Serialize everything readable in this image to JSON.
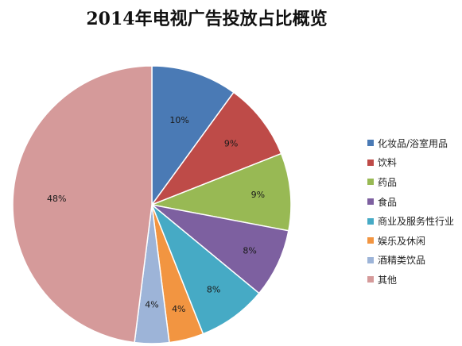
{
  "chart_data": {
    "type": "pie",
    "title": "2014年电视广告投放占比概览",
    "categories": [
      "化妆品/浴室用品",
      "饮料",
      "药品",
      "食品",
      "商业及服务性行业",
      "娱乐及休闲",
      "酒精类饮品",
      "其他"
    ],
    "values": [
      10,
      9,
      9,
      8,
      8,
      4,
      4,
      48
    ],
    "data_labels": [
      "10%",
      "9%",
      "9%",
      "8%",
      "8%",
      "4%",
      "4%",
      "48%"
    ],
    "colors": [
      "#4a7ab5",
      "#be4b48",
      "#98b954",
      "#7d60a0",
      "#46aac5",
      "#f29541",
      "#9db4d8",
      "#d59a9a"
    ],
    "start_angle_deg": 0,
    "direction": "clockwise",
    "legend_position": "right"
  }
}
